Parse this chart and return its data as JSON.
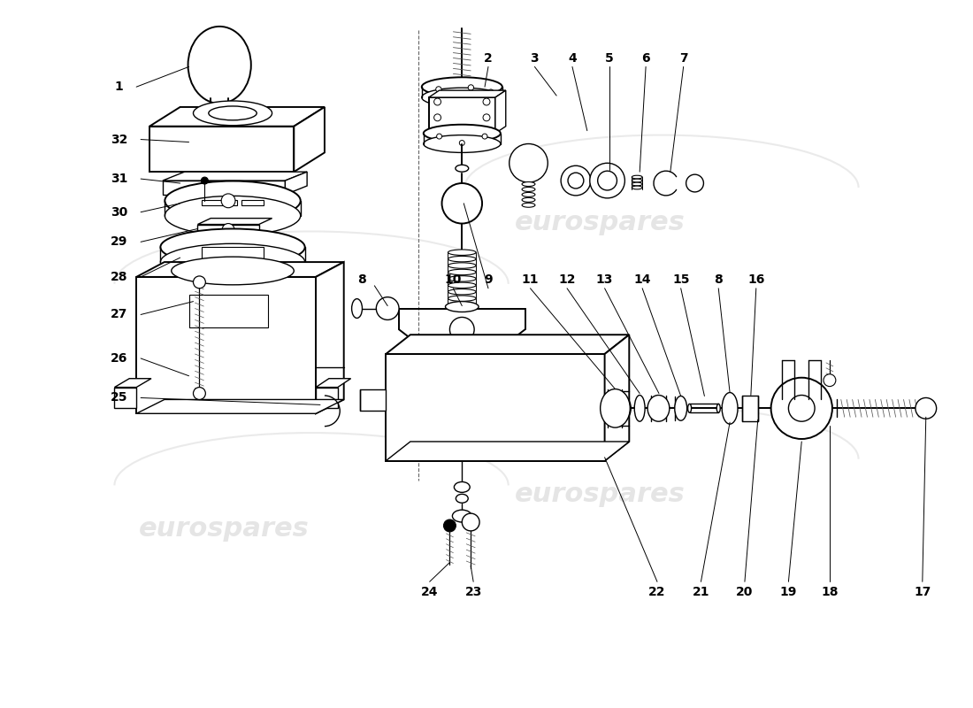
{
  "bg_color": "#ffffff",
  "watermark_text": "eurospares",
  "watermark_color": "#cccccc",
  "line_color": "#000000",
  "fig_width": 11.0,
  "fig_height": 8.0,
  "dpi": 100
}
